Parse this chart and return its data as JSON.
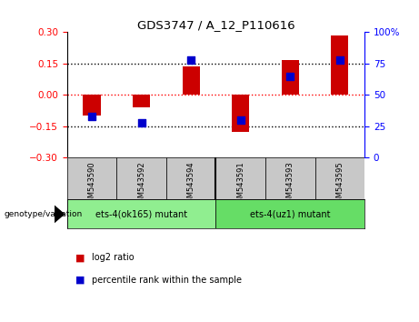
{
  "title": "GDS3747 / A_12_P110616",
  "samples": [
    "GSM543590",
    "GSM543592",
    "GSM543594",
    "GSM543591",
    "GSM543593",
    "GSM543595"
  ],
  "log2_ratio": [
    -0.1,
    -0.06,
    0.135,
    -0.175,
    0.165,
    0.285
  ],
  "percentile_rank": [
    33,
    28,
    78,
    30,
    65,
    78
  ],
  "ylim_left": [
    -0.3,
    0.3
  ],
  "ylim_right": [
    0,
    100
  ],
  "yticks_left": [
    -0.3,
    -0.15,
    0,
    0.15,
    0.3
  ],
  "yticks_right": [
    0,
    25,
    50,
    75,
    100
  ],
  "groups": [
    {
      "label": "ets-4(ok165) mutant",
      "samples_idx": [
        0,
        1,
        2
      ],
      "color": "#90EE90"
    },
    {
      "label": "ets-4(uz1) mutant",
      "samples_idx": [
        3,
        4,
        5
      ],
      "color": "#66DD66"
    }
  ],
  "bar_color_red": "#CC0000",
  "bar_color_blue": "#0000CC",
  "bar_width": 0.35,
  "percentile_marker_size": 28,
  "background_plot": "#FFFFFF",
  "background_labels": "#C8C8C8",
  "legend_label_red": "log2 ratio",
  "legend_label_blue": "percentile rank within the sample",
  "genotype_label": "genotype/variation"
}
